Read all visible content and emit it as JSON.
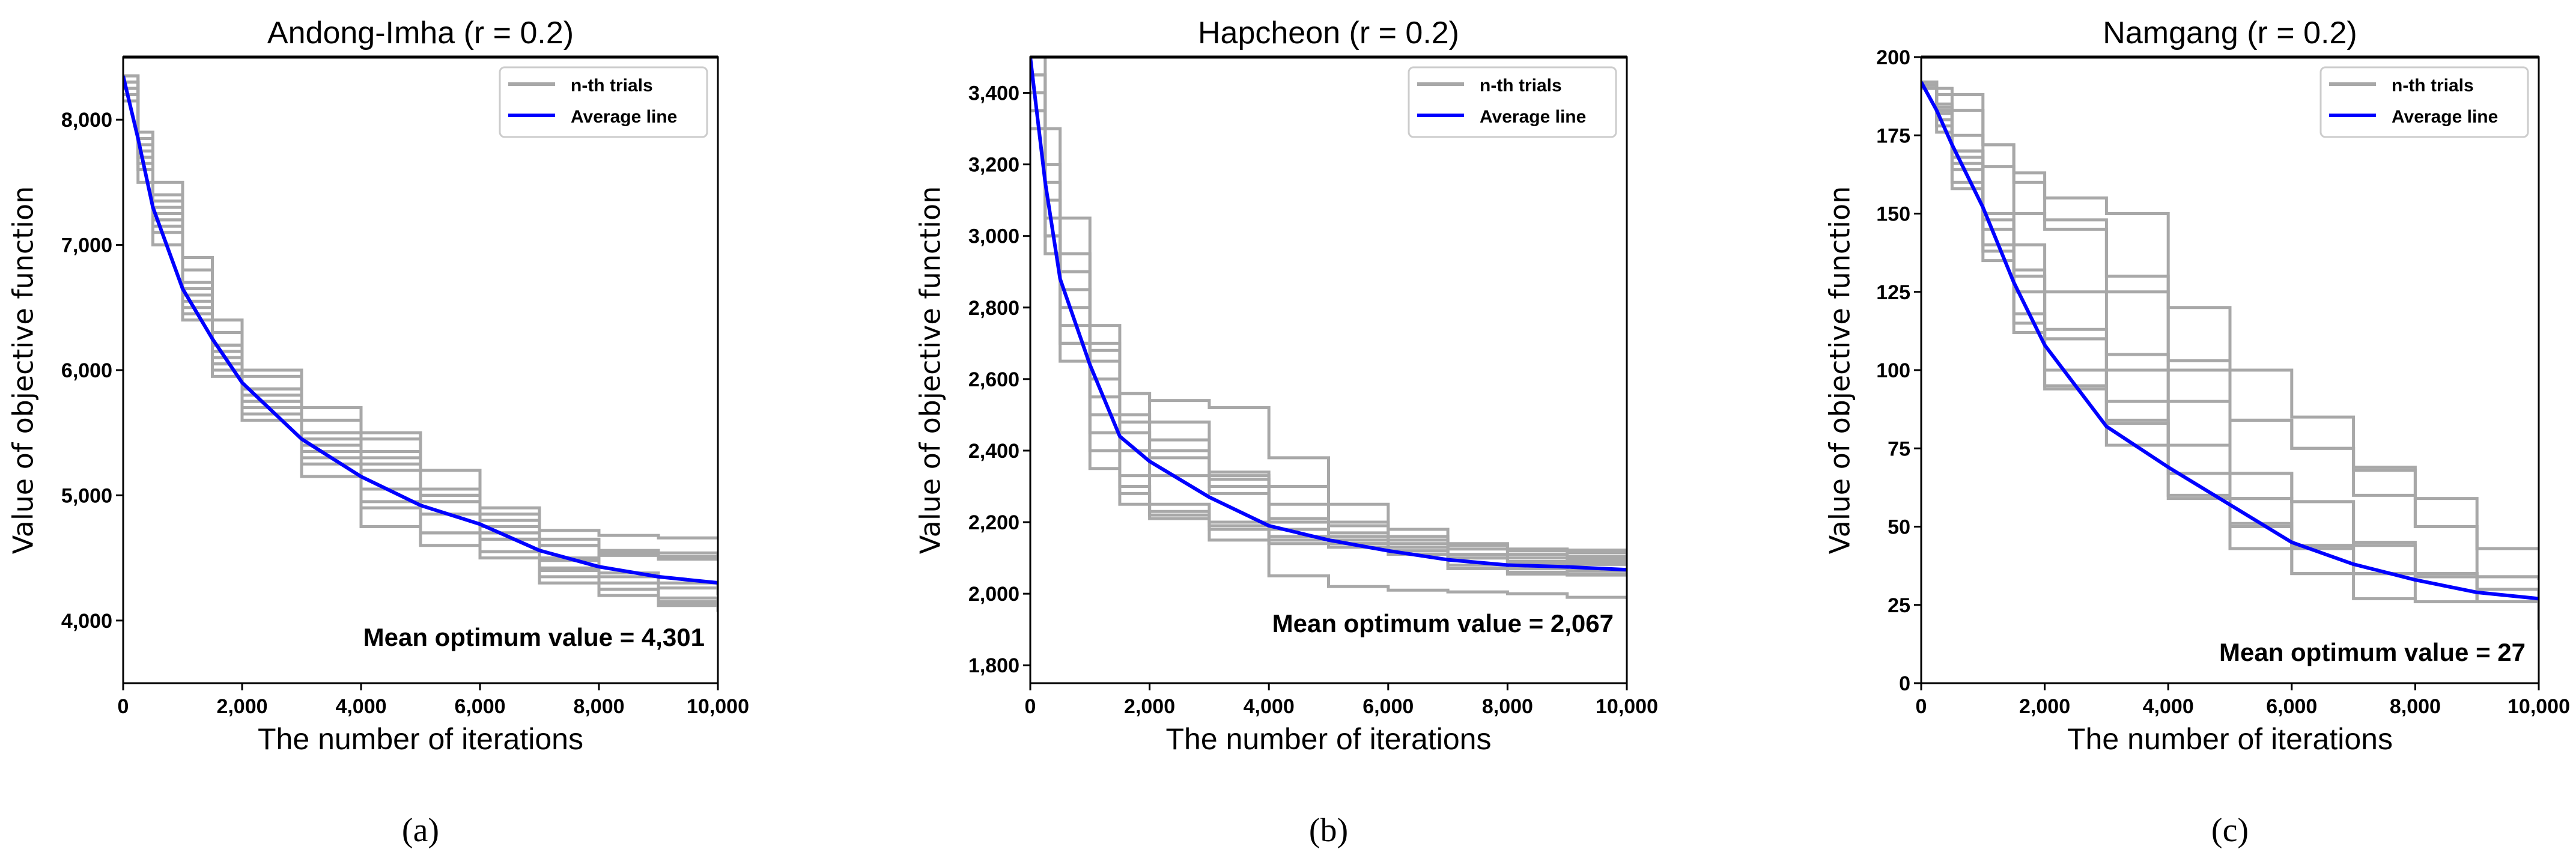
{
  "colors": {
    "trial": "#a8a8a8",
    "average": "#0000ff",
    "axis": "#000000",
    "legend_border": "#cccccc"
  },
  "chart_data": [
    {
      "type": "line",
      "panel_label": "(a)",
      "title": "Andong-Imha (r = 0.2)",
      "xlabel": "The number of iterations",
      "ylabel": "Value of objective function",
      "xlim": [
        0,
        10000
      ],
      "ylim": [
        3500,
        8500
      ],
      "x_ticks": [
        0,
        2000,
        4000,
        6000,
        8000,
        10000
      ],
      "x_tick_labels": [
        "0",
        "2,000",
        "4,000",
        "6,000",
        "8,000",
        "10,000"
      ],
      "y_ticks": [
        4000,
        5000,
        6000,
        7000,
        8000
      ],
      "y_tick_labels": [
        "4,000",
        "5,000",
        "6,000",
        "7,000",
        "8,000"
      ],
      "legend": {
        "placement": "top-right",
        "entries": [
          "n-th trials",
          "Average line"
        ]
      },
      "annotation": "Mean optimum value = 4,301",
      "grid": false,
      "x": [
        0,
        250,
        500,
        1000,
        1500,
        2000,
        3000,
        4000,
        5000,
        6000,
        7000,
        8000,
        9000,
        10000
      ],
      "average": [
        8350,
        7850,
        7300,
        6650,
        6250,
        5900,
        5450,
        5150,
        4920,
        4770,
        4560,
        4430,
        4350,
        4301
      ],
      "trials": [
        [
          8350,
          7900,
          7500,
          6900,
          6400,
          6000,
          5600,
          5450,
          5200,
          4900,
          4720,
          4680,
          4660,
          4650
        ],
        [
          8300,
          7800,
          7300,
          6700,
          6200,
          5850,
          5500,
          5350,
          5000,
          4850,
          4650,
          4560,
          4540,
          4520
        ],
        [
          8250,
          7700,
          7200,
          6600,
          6150,
          5800,
          5400,
          5200,
          4950,
          4800,
          4600,
          4540,
          4510,
          4500
        ],
        [
          8300,
          7850,
          7400,
          6800,
          6300,
          5950,
          5700,
          5500,
          5050,
          4750,
          4600,
          4520,
          4490,
          4480
        ],
        [
          8200,
          7600,
          7100,
          6500,
          6100,
          5700,
          5350,
          5050,
          4850,
          4700,
          4480,
          4380,
          4300,
          4250
        ],
        [
          8150,
          7500,
          7000,
          6400,
          6000,
          5600,
          5300,
          4950,
          4700,
          4550,
          4400,
          4300,
          4180,
          4130
        ],
        [
          8300,
          7750,
          7200,
          6550,
          6050,
          5750,
          5250,
          4750,
          4700,
          4650,
          4350,
          4250,
          4150,
          4100
        ],
        [
          8250,
          7650,
          7150,
          6450,
          5950,
          5650,
          5150,
          4900,
          4600,
          4500,
          4300,
          4200,
          4130,
          4090
        ],
        [
          8350,
          7900,
          7350,
          6600,
          6050,
          5750,
          5450,
          5300,
          5000,
          4650,
          4420,
          4250,
          4120,
          4070
        ],
        [
          8200,
          7700,
          7250,
          6650,
          6200,
          5850,
          5500,
          5250,
          4950,
          4700,
          4500,
          4350,
          4260,
          4200
        ]
      ]
    },
    {
      "type": "line",
      "panel_label": "(b)",
      "title": "Hapcheon (r = 0.2)",
      "xlabel": "The number of iterations",
      "ylabel": "Value of objective function",
      "xlim": [
        0,
        10000
      ],
      "ylim": [
        1750,
        3500
      ],
      "x_ticks": [
        0,
        2000,
        4000,
        6000,
        8000,
        10000
      ],
      "x_tick_labels": [
        "0",
        "2,000",
        "4,000",
        "6,000",
        "8,000",
        "10,000"
      ],
      "y_ticks": [
        1800,
        2000,
        2200,
        2400,
        2600,
        2800,
        3000,
        3200,
        3400
      ],
      "y_tick_labels": [
        "1,800",
        "2,000",
        "2,200",
        "2,400",
        "2,600",
        "2,800",
        "3,000",
        "3,200",
        "3,400"
      ],
      "legend": {
        "placement": "top-right",
        "entries": [
          "n-th trials",
          "Average line"
        ]
      },
      "annotation": "Mean optimum value = 2,067",
      "grid": false,
      "x": [
        0,
        250,
        500,
        1000,
        1500,
        2000,
        3000,
        4000,
        5000,
        6000,
        7000,
        8000,
        9000,
        10000
      ],
      "average": [
        3500,
        3150,
        2880,
        2640,
        2440,
        2370,
        2270,
        2190,
        2150,
        2120,
        2095,
        2080,
        2075,
        2067
      ],
      "trials": [
        [
          3500,
          3300,
          3050,
          2750,
          2560,
          2540,
          2520,
          2380,
          2250,
          2180,
          2140,
          2125,
          2122,
          2120
        ],
        [
          3450,
          3200,
          2950,
          2700,
          2560,
          2480,
          2340,
          2250,
          2190,
          2160,
          2135,
          2120,
          2115,
          2110
        ],
        [
          3400,
          3100,
          2900,
          2650,
          2480,
          2400,
          2330,
          2300,
          2200,
          2150,
          2125,
          2110,
          2105,
          2100
        ],
        [
          3350,
          3050,
          2850,
          2600,
          2450,
          2380,
          2300,
          2210,
          2170,
          2140,
          2110,
          2100,
          2097,
          2095
        ],
        [
          3450,
          3150,
          2900,
          2680,
          2500,
          2430,
          2320,
          2200,
          2160,
          2130,
          2100,
          2090,
          2090,
          2090
        ],
        [
          3400,
          3050,
          2800,
          2550,
          2400,
          2330,
          2280,
          2180,
          2150,
          2120,
          2100,
          2085,
          2082,
          2080
        ],
        [
          3300,
          2950,
          2700,
          2450,
          2300,
          2230,
          2200,
          2160,
          2140,
          2130,
          2100,
          2070,
          2065,
          2060
        ],
        [
          3350,
          3000,
          2750,
          2400,
          2280,
          2220,
          2190,
          2150,
          2140,
          2120,
          2080,
          2060,
          2056,
          2055
        ],
        [
          3300,
          2950,
          2650,
          2350,
          2250,
          2210,
          2180,
          2140,
          2130,
          2110,
          2070,
          2055,
          2052,
          2050
        ],
        [
          3350,
          3000,
          2700,
          2500,
          2330,
          2250,
          2150,
          2050,
          2020,
          2010,
          2005,
          2000,
          1990,
          1985
        ]
      ]
    },
    {
      "type": "line",
      "panel_label": "(c)",
      "title": "Namgang (r = 0.2)",
      "xlabel": "The number of iterations",
      "ylabel": "Value of objective function",
      "xlim": [
        0,
        10000
      ],
      "ylim": [
        0,
        200
      ],
      "x_ticks": [
        0,
        2000,
        4000,
        6000,
        8000,
        10000
      ],
      "x_tick_labels": [
        "0",
        "2,000",
        "4,000",
        "6,000",
        "8,000",
        "10,000"
      ],
      "y_ticks": [
        0,
        25,
        50,
        75,
        100,
        125,
        150,
        175,
        200
      ],
      "y_tick_labels": [
        "0",
        "25",
        "50",
        "75",
        "100",
        "125",
        "150",
        "175",
        "200"
      ],
      "legend": {
        "placement": "top-right",
        "entries": [
          "n-th trials",
          "Average line"
        ]
      },
      "annotation": "Mean optimum value = 27",
      "grid": false,
      "x": [
        0,
        250,
        500,
        1000,
        1500,
        2000,
        3000,
        4000,
        5000,
        6000,
        7000,
        8000,
        9000,
        10000
      ],
      "average": [
        192,
        183,
        172,
        152,
        128,
        108,
        82,
        69,
        57,
        45,
        38,
        33,
        29,
        27
      ],
      "trials": [
        [
          192,
          190,
          188,
          172,
          163,
          155,
          150,
          120,
          100,
          85,
          69,
          59,
          43,
          43
        ],
        [
          192,
          188,
          183,
          172,
          160,
          148,
          130,
          103,
          84,
          75,
          68,
          50,
          43,
          43
        ],
        [
          190,
          185,
          175,
          165,
          150,
          145,
          125,
          100,
          84,
          75,
          60,
          50,
          34,
          34
        ],
        [
          192,
          184,
          170,
          148,
          140,
          125,
          105,
          90,
          67,
          58,
          44,
          35,
          34,
          33
        ],
        [
          191,
          180,
          166,
          150,
          130,
          110,
          100,
          76,
          67,
          58,
          45,
          35,
          30,
          27
        ],
        [
          192,
          182,
          168,
          145,
          125,
          110,
          90,
          76,
          59,
          44,
          35,
          35,
          26,
          26
        ],
        [
          190,
          178,
          160,
          140,
          118,
          100,
          83,
          67,
          51,
          43,
          35,
          26,
          26,
          26
        ],
        [
          192,
          180,
          164,
          135,
          112,
          95,
          76,
          60,
          43,
          35,
          27,
          26,
          26,
          26
        ],
        [
          192,
          176,
          158,
          138,
          115,
          94,
          76,
          59,
          50,
          35,
          35,
          34,
          26,
          26
        ],
        [
          191,
          183,
          170,
          150,
          132,
          113,
          84,
          76,
          59,
          44,
          35,
          34,
          26,
          17
        ]
      ]
    }
  ]
}
